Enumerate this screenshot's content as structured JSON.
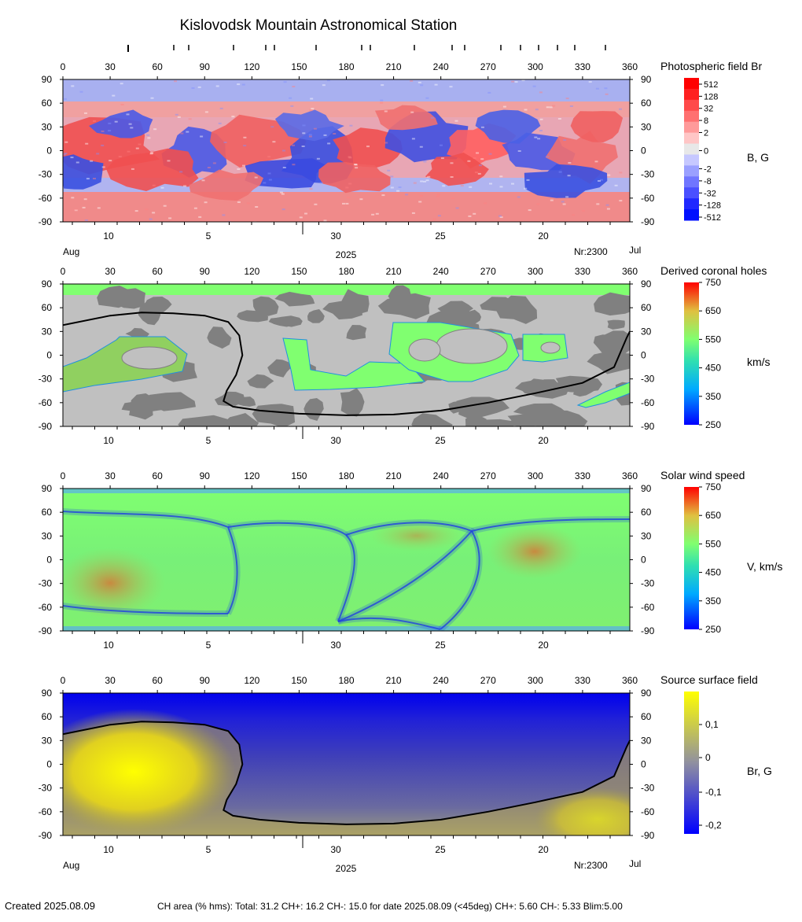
{
  "title": "Kislovodsk Mountain Astronomical Station",
  "footer": {
    "created": "Created  2025.08.09",
    "ch_area": "CH area (% hms): Total: 31.2 CH+: 16.2   CH-: 15.0 for date 2025.08.09 (<45deg) CH+: 5.60    CH-: 5.33 Blim:5.00"
  },
  "chart_data": [
    {
      "type": "heatmap",
      "title": "Photospheric field Br",
      "colorbar_label": "B, G",
      "colorbar_ticks": [
        "512",
        "128",
        "32",
        "8",
        "2",
        "0",
        "-2",
        "-8",
        "-32",
        "-128",
        "-512"
      ],
      "colorbar_colors": [
        "#ff0000",
        "#ff2020",
        "#ff4a4a",
        "#ff7070",
        "#ff9a9a",
        "#ffc6c6",
        "#e8e8e8",
        "#c6c8ff",
        "#9aa0ff",
        "#7076ff",
        "#4a50ff",
        "#2028ff",
        "#0010ff"
      ],
      "colors": {
        "positive": "#f05a5a",
        "negative": "#4a5ae6"
      },
      "xaxis_top_ticks": [
        "0",
        "30",
        "60",
        "90",
        "120",
        "150",
        "180",
        "210",
        "240",
        "270",
        "300",
        "330",
        "360"
      ],
      "yaxis_ticks": [
        "90",
        "60",
        "30",
        "0",
        "-30",
        "-60",
        "-90"
      ],
      "date_ticks": [
        "10",
        "5",
        "30",
        "25",
        "20"
      ],
      "date_left": "Aug",
      "date_center": "2025",
      "date_right": "Jul",
      "rotation": "Nr:2300"
    },
    {
      "type": "heatmap",
      "title": "Derived coronal holes",
      "colorbar_label": "km/s",
      "colorbar_ticks": [
        "750",
        "650",
        "550",
        "450",
        "350",
        "250"
      ],
      "colors": {
        "background": "#c0c0c0",
        "dark": "#808080",
        "hole": "#80ff70"
      },
      "xaxis_top_ticks": [
        "0",
        "30",
        "60",
        "90",
        "120",
        "150",
        "180",
        "210",
        "240",
        "270",
        "300",
        "330",
        "360"
      ],
      "yaxis_ticks": [
        "90",
        "60",
        "30",
        "0",
        "-30",
        "-60",
        "-90"
      ],
      "date_ticks": [
        "10",
        "5",
        "30",
        "25",
        "20"
      ]
    },
    {
      "type": "heatmap",
      "title": "Solar wind speed",
      "colorbar_label": "V, km/s",
      "colorbar_ticks": [
        "750",
        "650",
        "550",
        "450",
        "350",
        "250"
      ],
      "xaxis_top_ticks": [
        "0",
        "30",
        "60",
        "90",
        "120",
        "150",
        "180",
        "210",
        "240",
        "270",
        "300",
        "330",
        "360"
      ],
      "yaxis_ticks": [
        "90",
        "60",
        "30",
        "0",
        "-30",
        "-60",
        "-90"
      ],
      "date_ticks": [
        "10",
        "5",
        "30",
        "25",
        "20"
      ]
    },
    {
      "type": "heatmap",
      "title": "Source surface field",
      "colorbar_label": "Br, G",
      "colorbar_ticks": [
        "0,1",
        "0",
        "-0,1",
        "-0,2"
      ],
      "xaxis_top_ticks": [
        "0",
        "30",
        "60",
        "90",
        "120",
        "150",
        "180",
        "210",
        "240",
        "270",
        "300",
        "330",
        "360"
      ],
      "yaxis_ticks": [
        "90",
        "60",
        "30",
        "0",
        "-30",
        "-60",
        "-90"
      ],
      "date_ticks": [
        "10",
        "5",
        "30",
        "25",
        "20"
      ],
      "date_left": "Aug",
      "date_center": "2025",
      "date_right": "Jul",
      "rotation": "Nr:2300"
    }
  ],
  "neutral_line_lon_lat": [
    [
      0,
      38
    ],
    [
      30,
      50
    ],
    [
      50,
      54
    ],
    [
      70,
      53
    ],
    [
      90,
      50
    ],
    [
      105,
      42
    ],
    [
      112,
      25
    ],
    [
      114,
      0
    ],
    [
      110,
      -25
    ],
    [
      104,
      -45
    ],
    [
      102,
      -58
    ],
    [
      108,
      -65
    ],
    [
      125,
      -70
    ],
    [
      150,
      -74
    ],
    [
      180,
      -76
    ],
    [
      210,
      -75
    ],
    [
      240,
      -70
    ],
    [
      270,
      -60
    ],
    [
      300,
      -48
    ],
    [
      330,
      -35
    ],
    [
      350,
      -15
    ],
    [
      358,
      22
    ],
    [
      360,
      30
    ]
  ]
}
